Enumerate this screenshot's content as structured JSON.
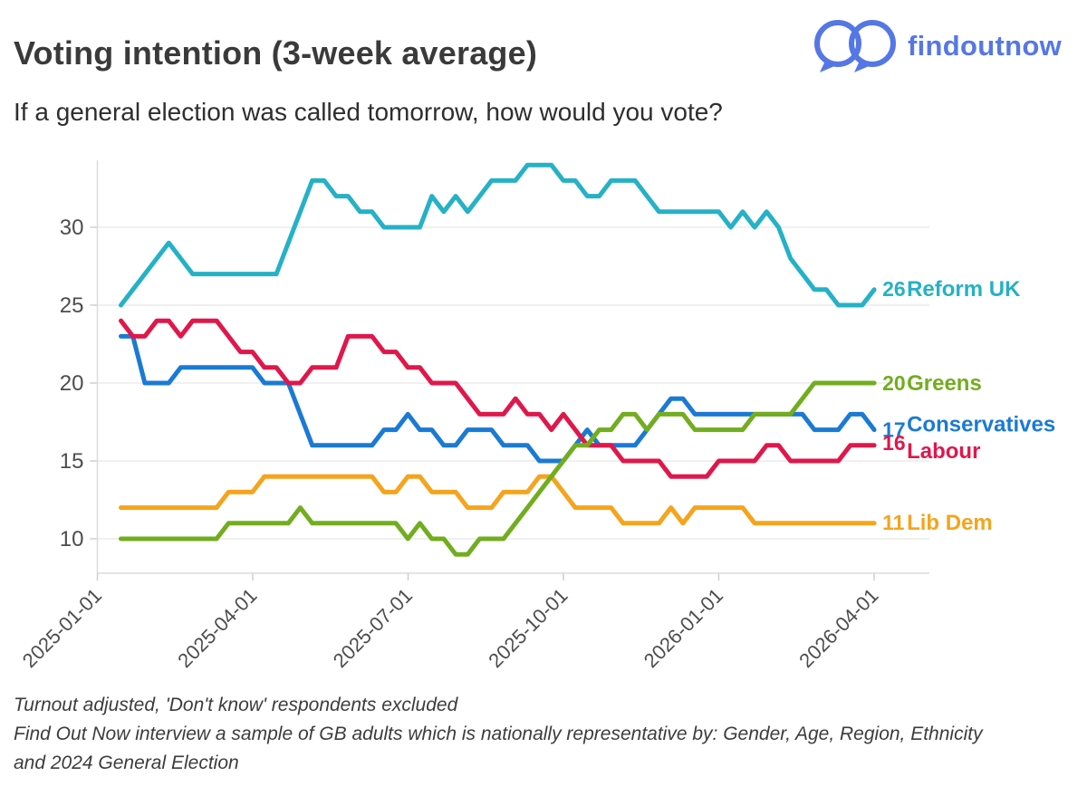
{
  "header": {
    "title": "Voting intention (3-week average)",
    "subtitle": "If a general election was called tomorrow, how would you vote?",
    "logo_text": "findoutnow",
    "logo_color": "#5577e6"
  },
  "chart_data": {
    "type": "line",
    "x_start_date": "2025-01-15",
    "x_interval": "weekly",
    "x_tick_labels": [
      "2025-01-01",
      "2025-04-01",
      "2025-07-01",
      "2025-10-01",
      "2026-01-01",
      "2026-04-01"
    ],
    "y_ticks": [
      10,
      15,
      20,
      25,
      30
    ],
    "y_range": [
      8,
      35
    ],
    "grid": "horizontal",
    "legend_position": "right-end-labels",
    "series": [
      {
        "key": "reform",
        "name": "Reform UK",
        "color": "#25b1c6",
        "end_label": "26",
        "values": [
          25,
          26,
          27,
          28,
          29,
          28,
          27,
          27,
          27,
          27,
          27,
          27,
          27,
          27,
          29,
          31,
          33,
          33,
          32,
          32,
          31,
          31,
          30,
          30,
          30,
          30,
          32,
          31,
          32,
          31,
          32,
          33,
          33,
          33,
          34,
          34,
          34,
          33,
          33,
          32,
          32,
          33,
          33,
          33,
          32,
          31,
          31,
          31,
          31,
          31,
          31,
          30,
          31,
          30,
          31,
          30,
          28,
          27,
          26,
          26,
          25,
          25,
          25,
          26
        ]
      },
      {
        "key": "libdem",
        "name": "Lib Dem",
        "color": "#f5a41d",
        "end_label": "11",
        "values": [
          12,
          12,
          12,
          12,
          12,
          12,
          12,
          12,
          12,
          13,
          13,
          13,
          14,
          14,
          14,
          14,
          14,
          14,
          14,
          14,
          14,
          14,
          13,
          13,
          14,
          14,
          13,
          13,
          13,
          12,
          12,
          12,
          13,
          13,
          13,
          14,
          14,
          13,
          12,
          12,
          12,
          12,
          11,
          11,
          11,
          11,
          12,
          11,
          12,
          12,
          12,
          12,
          12,
          11,
          11,
          11,
          11,
          11,
          11,
          11,
          11,
          11,
          11,
          11
        ]
      },
      {
        "key": "conservatives",
        "name": "Conservatives",
        "color": "#1a7ad4",
        "end_label": "17",
        "values": [
          23,
          23,
          20,
          20,
          20,
          21,
          21,
          21,
          21,
          21,
          21,
          21,
          20,
          20,
          20,
          18,
          16,
          16,
          16,
          16,
          16,
          16,
          17,
          17,
          18,
          17,
          17,
          16,
          16,
          17,
          17,
          17,
          16,
          16,
          16,
          15,
          15,
          15,
          16,
          17,
          16,
          16,
          16,
          16,
          17,
          18,
          19,
          19,
          18,
          18,
          18,
          18,
          18,
          18,
          18,
          18,
          18,
          18,
          17,
          17,
          17,
          18,
          18,
          17
        ]
      },
      {
        "key": "labour",
        "name": "Labour",
        "color": "#e0174b",
        "end_label": "16",
        "values": [
          24,
          23,
          23,
          24,
          24,
          23,
          24,
          24,
          24,
          23,
          22,
          22,
          21,
          21,
          20,
          20,
          21,
          21,
          21,
          23,
          23,
          23,
          22,
          22,
          21,
          21,
          20,
          20,
          20,
          19,
          18,
          18,
          18,
          19,
          18,
          18,
          17,
          18,
          17,
          16,
          16,
          16,
          15,
          15,
          15,
          15,
          14,
          14,
          14,
          14,
          15,
          15,
          15,
          15,
          16,
          16,
          15,
          15,
          15,
          15,
          15,
          16,
          16,
          16
        ]
      },
      {
        "key": "greens",
        "name": "Greens",
        "color": "#72ad1f",
        "end_label": "20",
        "values": [
          10,
          10,
          10,
          10,
          10,
          10,
          10,
          10,
          10,
          11,
          11,
          11,
          11,
          11,
          11,
          12,
          11,
          11,
          11,
          11,
          11,
          11,
          11,
          11,
          10,
          11,
          10,
          10,
          9,
          9,
          10,
          10,
          10,
          11,
          12,
          13,
          14,
          15,
          16,
          16,
          17,
          17,
          18,
          18,
          17,
          18,
          18,
          18,
          17,
          17,
          17,
          17,
          17,
          18,
          18,
          18,
          18,
          19,
          20,
          20,
          20,
          20,
          20,
          20
        ]
      }
    ]
  },
  "footer": {
    "lines": [
      "Turnout adjusted, 'Don't know' respondents excluded",
      "Find Out Now interview a sample of GB adults which is nationally representative by: Gender, Age, Region, Ethnicity",
      "and 2024 General Election"
    ]
  }
}
